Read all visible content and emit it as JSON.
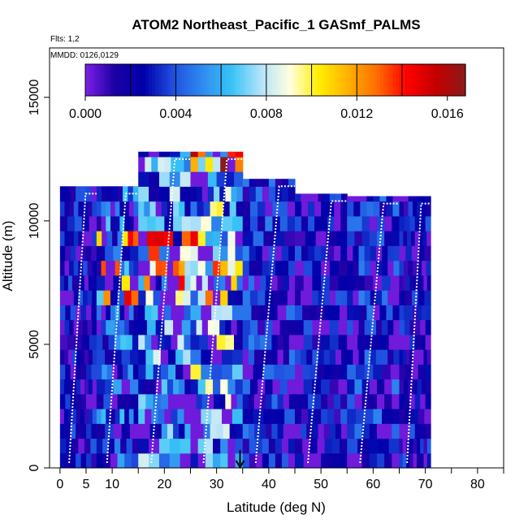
{
  "chart_data": {
    "type": "heatmap",
    "title": "ATOM2 Northeast_Pacific_1 GASmf_PALMS",
    "subtitle_flights": "Flts: 1,2",
    "subtitle_dates": "MMDD: 0126,0129",
    "xlabel": "Latitude (deg N)",
    "ylabel": "Altitude (m)",
    "xlim": [
      -2,
      85
    ],
    "ylim": [
      0,
      17000
    ],
    "x_ticks": [
      0,
      5,
      10,
      20,
      30,
      40,
      50,
      60,
      70,
      80
    ],
    "x_minor_ticks": [
      15,
      25,
      35,
      45,
      55,
      65,
      75,
      85
    ],
    "y_ticks": [
      0,
      5000,
      10000,
      15000
    ],
    "colorbar": {
      "min": 0.0,
      "max": 0.0168,
      "ticks": [
        0.0,
        0.004,
        0.008,
        0.012,
        0.016
      ],
      "tick_labels": [
        "0.000",
        "0.004",
        "0.008",
        "0.012",
        "0.016"
      ],
      "colors": [
        "#7f1fe6",
        "#1c00a6",
        "#0000aa",
        "#1f4fe0",
        "#2f8af0",
        "#38c3f5",
        "#b4e2fb",
        "#ffffe0",
        "#ffee00",
        "#ffb000",
        "#ff6a00",
        "#ff0000",
        "#c40000",
        "#8b1a1a"
      ]
    },
    "marker": {
      "label": "arrow",
      "latitude": 34.5
    },
    "profiles": [
      {
        "lat_range": [
          0.0,
          7.0
        ],
        "alt_range": [
          0,
          11400
        ],
        "value": 0.0025
      },
      {
        "lat_range": [
          7.0,
          15.0
        ],
        "alt_range": [
          0,
          11400
        ],
        "value": 0.004
      },
      {
        "lat_range": [
          15.0,
          25.0
        ],
        "alt_range": [
          0,
          12800
        ],
        "value": 0.005
      },
      {
        "lat_range": [
          25.0,
          35.0
        ],
        "alt_range": [
          0,
          12800
        ],
        "value": 0.006
      },
      {
        "lat_range": [
          35.0,
          45.0
        ],
        "alt_range": [
          0,
          11700
        ],
        "value": 0.003
      },
      {
        "lat_range": [
          45.0,
          55.0
        ],
        "alt_range": [
          0,
          11100
        ],
        "value": 0.0025
      },
      {
        "lat_range": [
          55.0,
          65.0
        ],
        "alt_range": [
          0,
          11000
        ],
        "value": 0.003
      },
      {
        "lat_range": [
          65.0,
          71.0
        ],
        "alt_range": [
          0,
          11000
        ],
        "value": 0.0025
      }
    ],
    "grid": false,
    "legend": "top colorbar"
  }
}
